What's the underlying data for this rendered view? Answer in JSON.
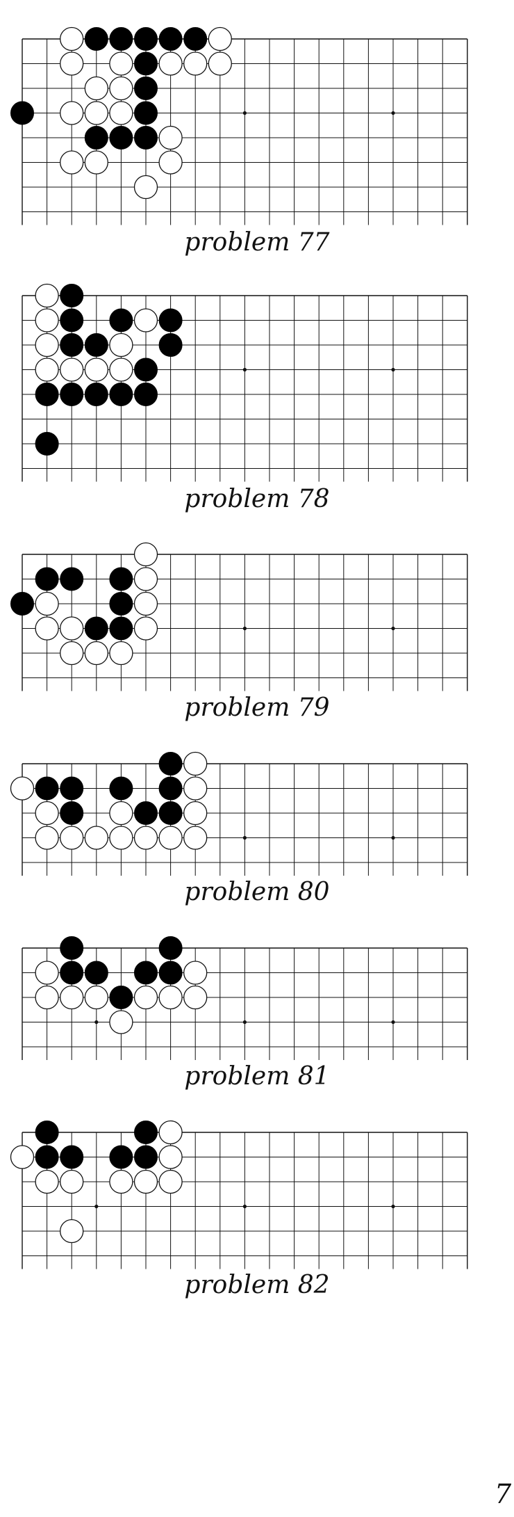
{
  "page_number": "7",
  "grid": {
    "columns": 19,
    "interior_lines": 5,
    "star_points_columns": [
      9,
      15
    ]
  },
  "problems": [
    {
      "caption": "problem 77",
      "rows": 8,
      "star_points": [
        [
          9,
          3
        ],
        [
          15,
          3
        ]
      ],
      "black": [
        [
          3,
          0
        ],
        [
          4,
          0
        ],
        [
          5,
          0
        ],
        [
          6,
          0
        ],
        [
          7,
          0
        ],
        [
          5,
          1
        ],
        [
          0,
          3
        ],
        [
          5,
          2
        ],
        [
          5,
          3
        ],
        [
          3,
          4
        ],
        [
          4,
          4
        ],
        [
          5,
          4
        ]
      ],
      "white": [
        [
          2,
          0
        ],
        [
          8,
          0
        ],
        [
          2,
          1
        ],
        [
          4,
          1
        ],
        [
          6,
          1
        ],
        [
          7,
          1
        ],
        [
          8,
          1
        ],
        [
          3,
          2
        ],
        [
          4,
          2
        ],
        [
          2,
          3
        ],
        [
          3,
          3
        ],
        [
          4,
          3
        ],
        [
          6,
          4
        ],
        [
          2,
          5
        ],
        [
          3,
          5
        ],
        [
          6,
          5
        ],
        [
          5,
          6
        ]
      ]
    },
    {
      "caption": "problem 78",
      "rows": 8,
      "star_points": [
        [
          9,
          3
        ],
        [
          15,
          3
        ]
      ],
      "black": [
        [
          2,
          0
        ],
        [
          2,
          1
        ],
        [
          4,
          1
        ],
        [
          6,
          1
        ],
        [
          2,
          2
        ],
        [
          3,
          2
        ],
        [
          6,
          2
        ],
        [
          5,
          3
        ],
        [
          1,
          4
        ],
        [
          2,
          4
        ],
        [
          3,
          4
        ],
        [
          4,
          4
        ],
        [
          5,
          4
        ],
        [
          1,
          6
        ]
      ],
      "white": [
        [
          1,
          0
        ],
        [
          1,
          1
        ],
        [
          5,
          1
        ],
        [
          1,
          2
        ],
        [
          4,
          2
        ],
        [
          1,
          3
        ],
        [
          2,
          3
        ],
        [
          3,
          3
        ],
        [
          4,
          3
        ]
      ]
    },
    {
      "caption": "problem 79",
      "rows": 6,
      "star_points": [
        [
          9,
          3
        ],
        [
          15,
          3
        ]
      ],
      "black": [
        [
          1,
          1
        ],
        [
          2,
          1
        ],
        [
          4,
          1
        ],
        [
          0,
          2
        ],
        [
          4,
          2
        ],
        [
          3,
          3
        ],
        [
          4,
          3
        ]
      ],
      "white": [
        [
          5,
          0
        ],
        [
          5,
          1
        ],
        [
          1,
          2
        ],
        [
          5,
          2
        ],
        [
          1,
          3
        ],
        [
          2,
          3
        ],
        [
          5,
          3
        ],
        [
          2,
          4
        ],
        [
          3,
          4
        ],
        [
          4,
          4
        ]
      ]
    },
    {
      "caption": "problem 80",
      "rows": 5,
      "star_points": [
        [
          9,
          3
        ],
        [
          15,
          3
        ]
      ],
      "black": [
        [
          6,
          0
        ],
        [
          1,
          1
        ],
        [
          2,
          1
        ],
        [
          4,
          1
        ],
        [
          6,
          1
        ],
        [
          2,
          2
        ],
        [
          5,
          2
        ],
        [
          6,
          2
        ]
      ],
      "white": [
        [
          7,
          0
        ],
        [
          0,
          1
        ],
        [
          7,
          1
        ],
        [
          1,
          2
        ],
        [
          4,
          2
        ],
        [
          7,
          2
        ],
        [
          1,
          3
        ],
        [
          2,
          3
        ],
        [
          3,
          3
        ],
        [
          4,
          3
        ],
        [
          5,
          3
        ],
        [
          6,
          3
        ],
        [
          7,
          3
        ]
      ]
    },
    {
      "caption": "problem 81",
      "rows": 5,
      "star_points": [
        [
          3,
          3
        ],
        [
          9,
          3
        ],
        [
          15,
          3
        ]
      ],
      "black": [
        [
          2,
          0
        ],
        [
          6,
          0
        ],
        [
          2,
          1
        ],
        [
          3,
          1
        ],
        [
          5,
          1
        ],
        [
          6,
          1
        ],
        [
          4,
          2
        ]
      ],
      "white": [
        [
          1,
          1
        ],
        [
          7,
          1
        ],
        [
          1,
          2
        ],
        [
          2,
          2
        ],
        [
          3,
          2
        ],
        [
          5,
          2
        ],
        [
          6,
          2
        ],
        [
          7,
          2
        ],
        [
          4,
          3
        ]
      ]
    },
    {
      "caption": "problem 82",
      "rows": 6,
      "star_points": [
        [
          3,
          3
        ],
        [
          9,
          3
        ],
        [
          15,
          3
        ]
      ],
      "black": [
        [
          1,
          0
        ],
        [
          5,
          0
        ],
        [
          1,
          1
        ],
        [
          2,
          1
        ],
        [
          4,
          1
        ],
        [
          5,
          1
        ]
      ],
      "white": [
        [
          6,
          0
        ],
        [
          0,
          1
        ],
        [
          6,
          1
        ],
        [
          1,
          2
        ],
        [
          2,
          2
        ],
        [
          4,
          2
        ],
        [
          5,
          2
        ],
        [
          6,
          2
        ],
        [
          2,
          4
        ]
      ]
    }
  ]
}
